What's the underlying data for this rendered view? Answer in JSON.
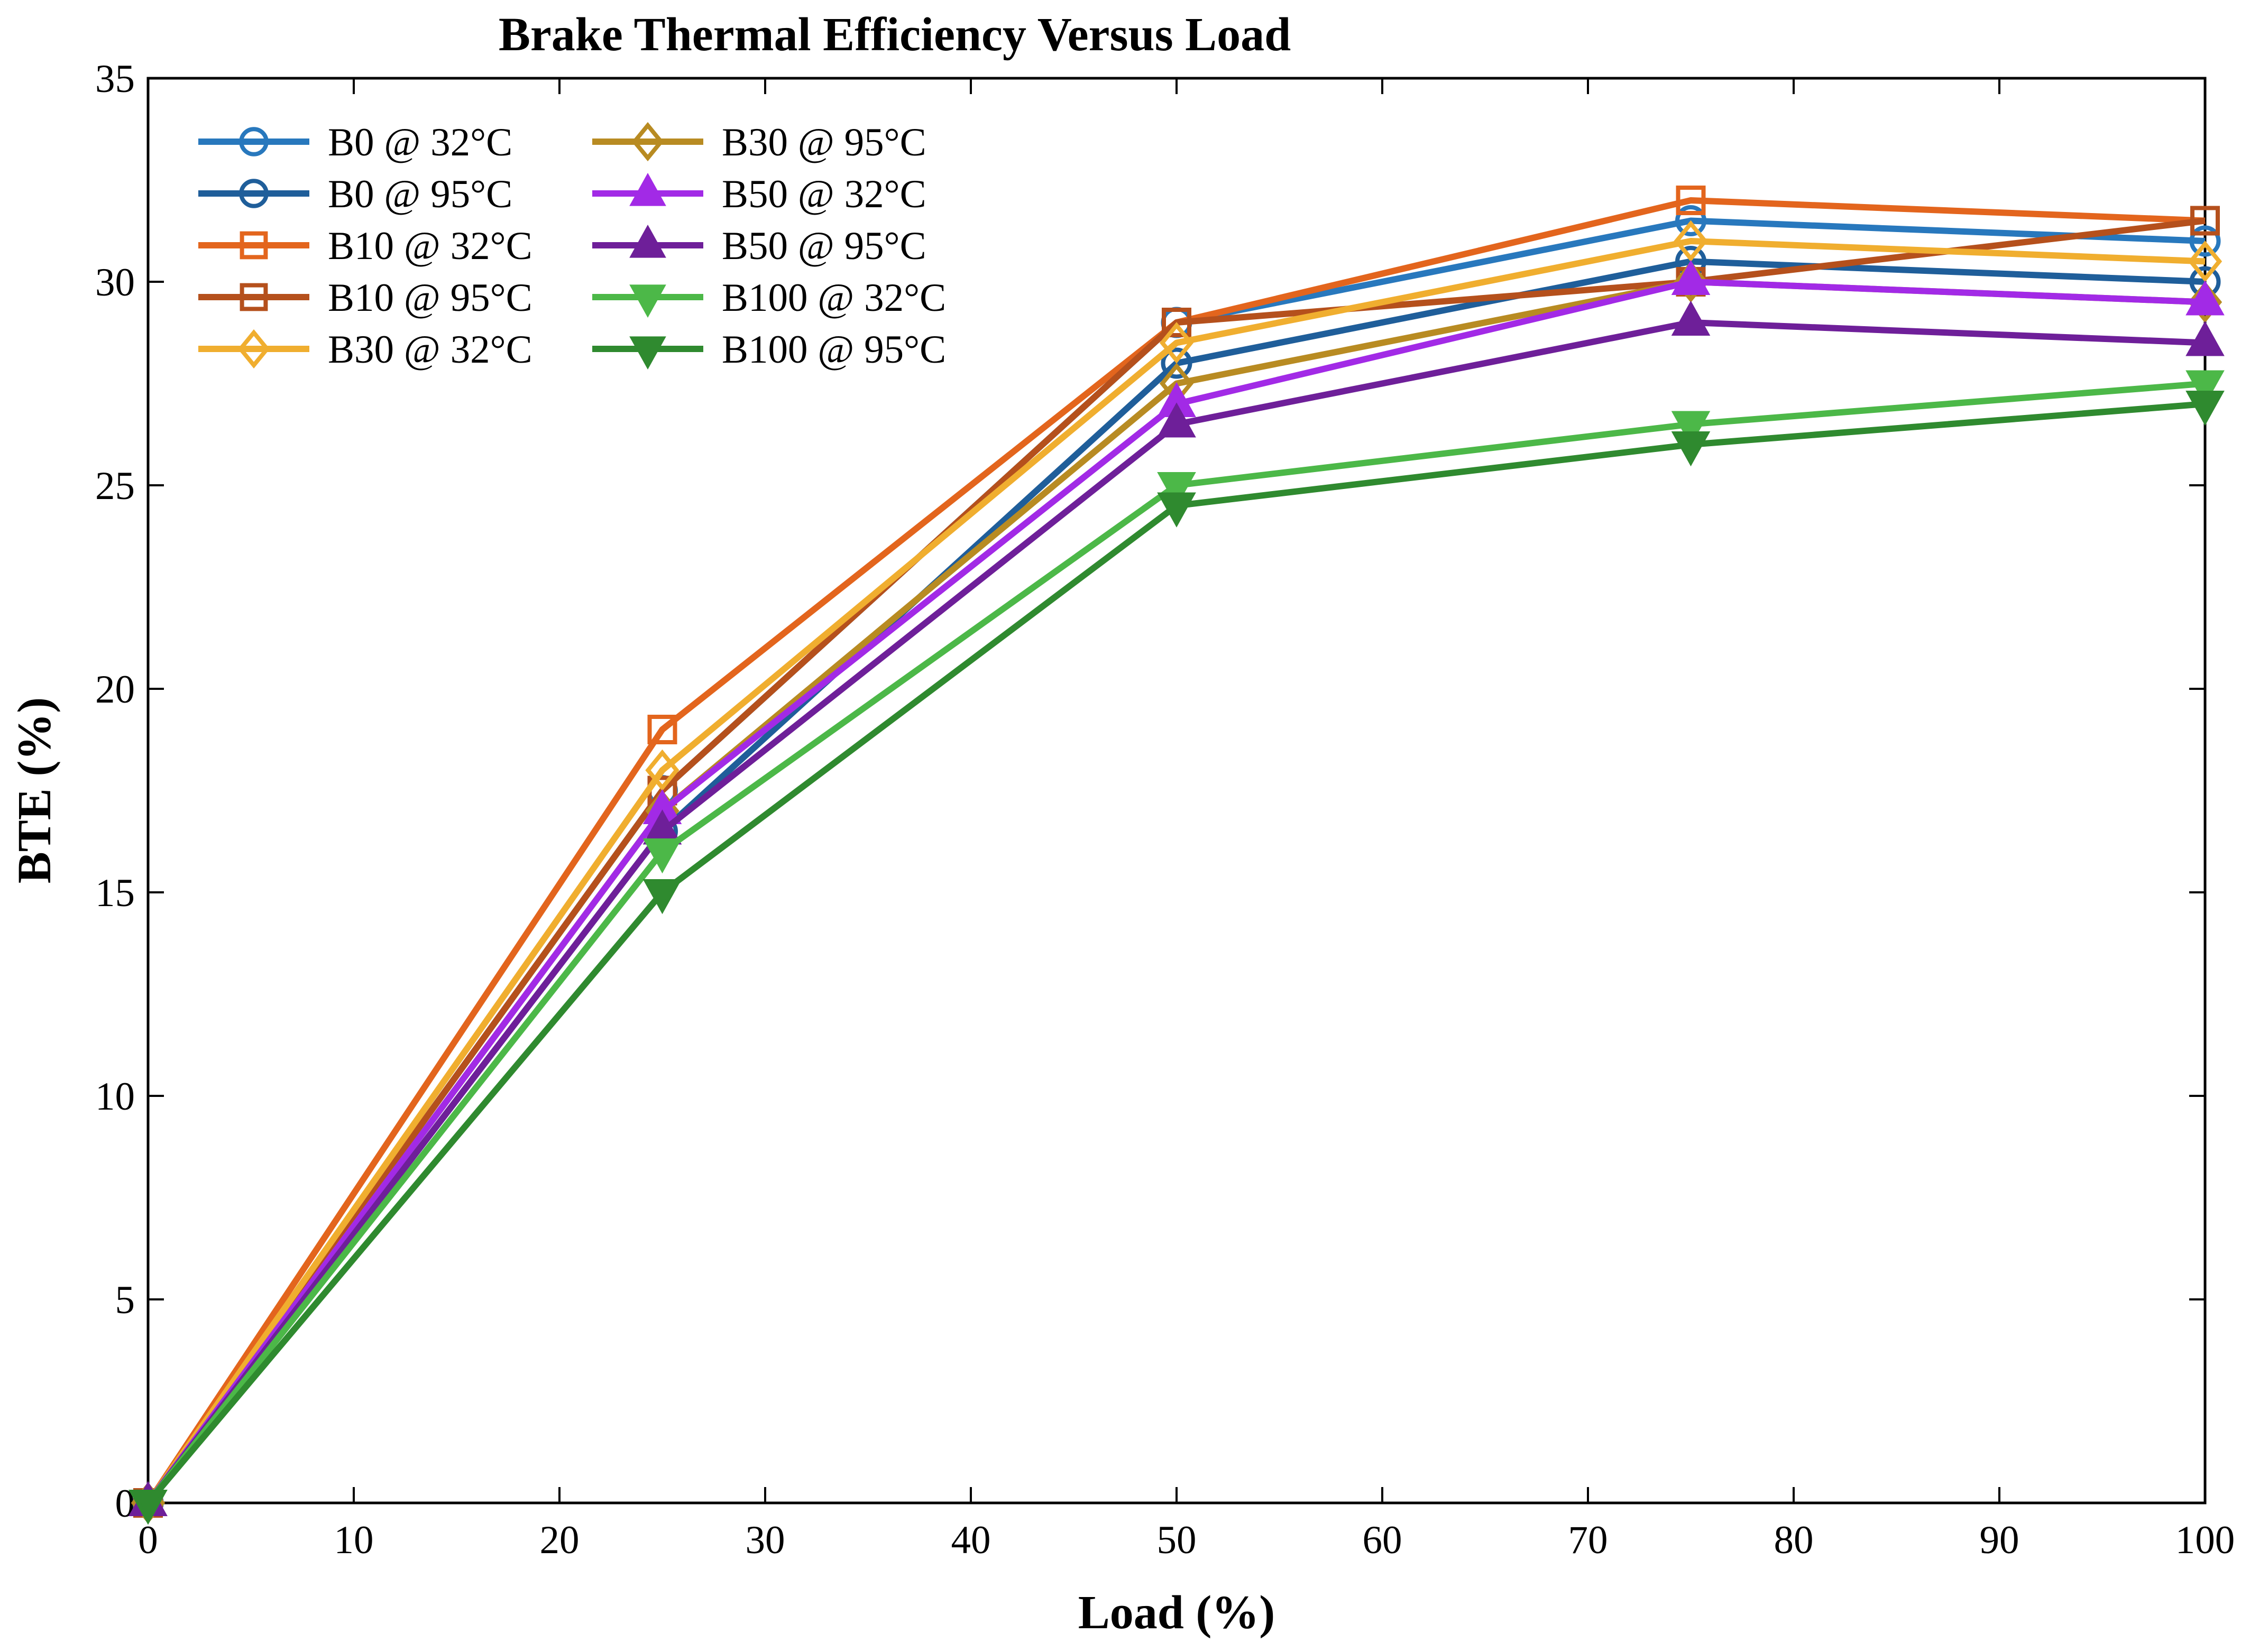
{
  "chart_data": {
    "type": "line",
    "title": "Brake Thermal Efficiency Versus Load",
    "xlabel": "Load (%)",
    "ylabel": "BTE (%)",
    "xlim": [
      0,
      100
    ],
    "ylim": [
      0,
      35
    ],
    "x_ticks": [
      0,
      10,
      20,
      30,
      40,
      50,
      60,
      70,
      80,
      90,
      100
    ],
    "y_ticks": [
      0,
      5,
      10,
      15,
      20,
      25,
      30,
      35
    ],
    "x_tick_labels": [
      "0",
      "10",
      "20",
      "30",
      "40",
      "50",
      "60",
      "70",
      "80",
      "90",
      "100"
    ],
    "y_tick_labels": [
      "0",
      "5",
      "10",
      "15",
      "20",
      "25",
      "30",
      "35"
    ],
    "grid": false,
    "legend_position": "top-left",
    "x": [
      0,
      25,
      50,
      75,
      100
    ],
    "series": [
      {
        "name": "B0 @ 32°C",
        "color": "#2878BD",
        "marker": "circle",
        "values": [
          0,
          17.5,
          29.0,
          31.5,
          31.0
        ]
      },
      {
        "name": "B0 @ 95°C",
        "color": "#1F5E9A",
        "marker": "circle",
        "values": [
          0,
          16.5,
          28.0,
          30.5,
          30.0
        ]
      },
      {
        "name": "B10 @ 32°C",
        "color": "#E3651D",
        "marker": "square",
        "values": [
          0,
          19.0,
          29.0,
          32.0,
          31.5
        ]
      },
      {
        "name": "B10 @ 95°C",
        "color": "#B5501C",
        "marker": "square",
        "values": [
          0,
          17.5,
          29.0,
          30.0,
          31.5
        ]
      },
      {
        "name": "B30 @ 32°C",
        "color": "#F0AE2F",
        "marker": "diamond",
        "values": [
          0,
          18.0,
          28.5,
          31.0,
          30.5
        ]
      },
      {
        "name": "B30 @ 95°C",
        "color": "#B88B22",
        "marker": "diamond",
        "values": [
          0,
          17.0,
          27.5,
          30.0,
          29.5
        ]
      },
      {
        "name": "B50 @ 32°C",
        "color": "#A22AE6",
        "marker": "triangle-up",
        "values": [
          0,
          17.0,
          27.0,
          30.0,
          29.5
        ]
      },
      {
        "name": "B50 @ 95°C",
        "color": "#6E1F99",
        "marker": "triangle-up",
        "values": [
          0,
          16.5,
          26.5,
          29.0,
          28.5
        ]
      },
      {
        "name": "B100 @ 32°C",
        "color": "#4CB848",
        "marker": "triangle-down",
        "values": [
          0,
          16.0,
          25.0,
          26.5,
          27.5
        ]
      },
      {
        "name": "B100 @ 95°C",
        "color": "#2F8A2F",
        "marker": "triangle-down",
        "values": [
          0,
          15.0,
          24.5,
          26.0,
          27.0
        ]
      }
    ]
  }
}
